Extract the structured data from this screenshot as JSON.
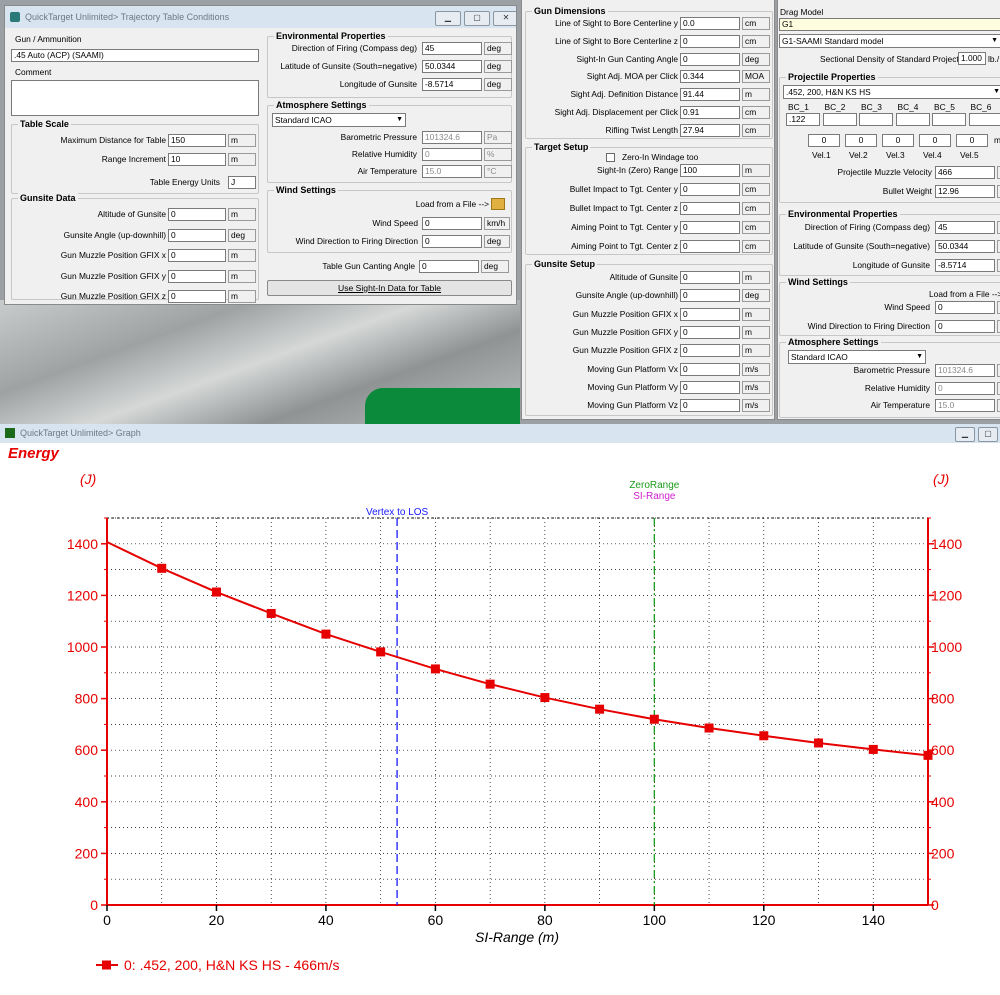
{
  "traj_window": {
    "title": "QuickTarget Unlimited> Trajectory Table Conditions",
    "gun_ammo_label": "Gun / Ammunition",
    "gun_ammo_value": ".45 Auto (ACP) (SAAMI)",
    "comment_label": "Comment",
    "table_scale": {
      "title": "Table Scale",
      "max_dist_label": "Maximum Distance for Table",
      "max_dist_value": "150",
      "max_dist_unit": "m",
      "range_inc_label": "Range Increment",
      "range_inc_value": "10",
      "range_inc_unit": "m",
      "energy_units_label": "Table Energy Units",
      "energy_units_value": "J"
    },
    "gunsite": {
      "title": "Gunsite Data",
      "rows": [
        {
          "label": "Altitude of Gunsite",
          "value": "0",
          "unit": "m"
        },
        {
          "label": "Gunsite Angle (up-downhill)",
          "value": "0",
          "unit": "deg"
        },
        {
          "label": "Gun Muzzle Position GFIX x",
          "value": "0",
          "unit": "m"
        },
        {
          "label": "Gun Muzzle Position GFIX y",
          "value": "0",
          "unit": "m"
        },
        {
          "label": "Gun Muzzle Position GFIX z",
          "value": "0",
          "unit": "m"
        }
      ]
    },
    "env": {
      "title": "Environmental Properties",
      "rows": [
        {
          "label": "Direction of Firing (Compass deg)",
          "value": "45",
          "unit": "deg"
        },
        {
          "label": "Latitude of Gunsite (South=negative)",
          "value": "50.0344",
          "unit": "deg"
        },
        {
          "label": "Longitude of Gunsite",
          "value": "-8.5714",
          "unit": "deg"
        }
      ]
    },
    "atmo": {
      "title": "Atmosphere Settings",
      "model": "Standard ICAO",
      "rows": [
        {
          "label": "Barometric Pressure",
          "value": "101324.6",
          "unit": "Pa"
        },
        {
          "label": "Relative Humidity",
          "value": "0",
          "unit": "%"
        },
        {
          "label": "Air Temperature",
          "value": "15.0",
          "unit": "°C"
        }
      ]
    },
    "wind": {
      "title": "Wind Settings",
      "load_label": "Load from a File -->",
      "speed_label": "Wind Speed",
      "speed_value": "0",
      "speed_unit": "km/h",
      "dir_label": "Wind Direction to Firing Direction",
      "dir_value": "0",
      "dir_unit": "deg"
    },
    "cant_label": "Table Gun Canting Angle",
    "cant_value": "0",
    "cant_unit": "deg",
    "use_sightin_button": "Use Sight-In Data for Table"
  },
  "mid_window": {
    "gun_dim": {
      "title": "Gun Dimensions",
      "rows": [
        {
          "label": "Line of Sight to Bore Centerline y",
          "value": "0.0",
          "unit": "cm"
        },
        {
          "label": "Line of Sight to Bore Centerline z",
          "value": "0",
          "unit": "cm"
        },
        {
          "label": "Sight-In Gun Canting Angle",
          "value": "0",
          "unit": "deg"
        },
        {
          "label": "Sight Adj. MOA per Click",
          "value": "0.344",
          "unit": "MOA"
        },
        {
          "label": "Sight Adj. Definition Distance",
          "value": "91.44",
          "unit": "m"
        },
        {
          "label": "Sight Adj. Displacement per Click",
          "value": "0.91",
          "unit": "cm"
        },
        {
          "label": "Rifling Twist Length",
          "value": "27.94",
          "unit": "cm"
        }
      ]
    },
    "target": {
      "title": "Target Setup",
      "zero_windage_label": "Zero-In Windage too",
      "rows": [
        {
          "label": "Sight-In (Zero) Range",
          "value": "100",
          "unit": "m"
        },
        {
          "label": "Bullet Impact to Tgt. Center y",
          "value": "0",
          "unit": "cm"
        },
        {
          "label": "Bullet Impact to Tgt. Center z",
          "value": "0",
          "unit": "cm"
        },
        {
          "label": "Aiming Point to Tgt. Center y",
          "value": "0",
          "unit": "cm"
        },
        {
          "label": "Aiming Point to Tgt. Center z",
          "value": "0",
          "unit": "cm"
        }
      ]
    },
    "gunsite": {
      "title": "Gunsite Setup",
      "rows": [
        {
          "label": "Altitude of Gunsite",
          "value": "0",
          "unit": "m"
        },
        {
          "label": "Gunsite Angle (up-downhill)",
          "value": "0",
          "unit": "deg"
        },
        {
          "label": "Gun Muzzle Position GFIX x",
          "value": "0",
          "unit": "m"
        },
        {
          "label": "Gun Muzzle Position GFIX y",
          "value": "0",
          "unit": "m"
        },
        {
          "label": "Gun Muzzle Position GFIX z",
          "value": "0",
          "unit": "m"
        },
        {
          "label": "Moving Gun Platform Vx",
          "value": "0",
          "unit": "m/s"
        },
        {
          "label": "Moving Gun Platform Vy",
          "value": "0",
          "unit": "m/s"
        },
        {
          "label": "Moving Gun Platform Vz",
          "value": "0",
          "unit": "m/s"
        }
      ]
    }
  },
  "right_window": {
    "drag_model_label": "Drag Model",
    "drag_model_value": "G1",
    "std_model_value": "G1-SAAMI Standard model",
    "sd_label": "Sectional Density of Standard Projectile",
    "sd_value": "1.000",
    "sd_unit": "lb./",
    "proj": {
      "title": "Projectile Properties",
      "name": ".452, 200, H&N KS HS",
      "bc_labels": [
        "BC_1",
        "BC_2",
        "BC_3",
        "BC_4",
        "BC_5",
        "BC_6"
      ],
      "bc_values": [
        ".122",
        "",
        "",
        "",
        "",
        ""
      ],
      "vel_values": [
        "0",
        "0",
        "0",
        "0",
        "0"
      ],
      "vel_labels": [
        "Vel.1",
        "Vel.2",
        "Vel.3",
        "Vel.4",
        "Vel.5"
      ],
      "vel_unit": "m",
      "muzzle_label": "Projectile Muzzle Velocity",
      "muzzle_value": "466",
      "muzzle_unit": "m",
      "weight_label": "Bullet Weight",
      "weight_value": "12.96",
      "weight_unit": "g"
    },
    "env": {
      "title": "Environmental Properties",
      "rows": [
        {
          "label": "Direction of Firing (Compass deg)",
          "value": "45",
          "unit": "d"
        },
        {
          "label": "Latitude of Gunsite (South=negative)",
          "value": "50.0344",
          "unit": "d"
        },
        {
          "label": "Longitude of Gunsite",
          "value": "-8.5714",
          "unit": "d"
        }
      ]
    },
    "wind": {
      "title": "Wind Settings",
      "load_label": "Load from a File -->",
      "speed_label": "Wind Speed",
      "speed_value": "0",
      "speed_unit": "k",
      "dir_label": "Wind Direction to Firing Direction",
      "dir_value": "0",
      "dir_unit": "d"
    },
    "atmo": {
      "title": "Atmosphere Settings",
      "model": "Standard ICAO",
      "rows": [
        {
          "label": "Barometric Pressure",
          "value": "101324.6",
          "unit": "P"
        },
        {
          "label": "Relative Humidity",
          "value": "0",
          "unit": "%"
        },
        {
          "label": "Air Temperature",
          "value": "15.0",
          "unit": "°"
        }
      ]
    }
  },
  "graph_window": {
    "title": "QuickTarget Unlimited> Graph"
  },
  "chart_data": {
    "type": "line",
    "title": "Energy",
    "ylabel_left": "(J)",
    "ylabel_right": "(J)",
    "xlabel": "SI-Range (m)",
    "xlim": [
      0,
      150
    ],
    "ylim": [
      0,
      1500
    ],
    "xticks": [
      0,
      20,
      40,
      60,
      80,
      100,
      120,
      140
    ],
    "yticks": [
      0,
      200,
      400,
      600,
      800,
      1000,
      1200,
      1400
    ],
    "grid": true,
    "series": [
      {
        "name": "0: .452, 200, H&N KS HS - 466m/s",
        "color": "#e60000",
        "x": [
          0,
          10,
          20,
          30,
          40,
          50,
          60,
          70,
          80,
          90,
          100,
          110,
          120,
          130,
          140,
          150
        ],
        "y": [
          1407,
          1305,
          1213,
          1130,
          1050,
          981,
          915,
          856,
          804,
          759,
          720,
          686,
          656,
          628,
          603,
          580
        ],
        "marker_x": [
          10,
          20,
          30,
          40,
          50,
          60,
          70,
          80,
          90,
          100,
          110,
          120,
          130,
          140,
          150
        ]
      }
    ],
    "annotations": [
      {
        "label": "Vertex to LOS",
        "x": 53,
        "color": "#1a1aff"
      },
      {
        "label": "ZeroRange",
        "x": 100,
        "color": "#1a9a1a"
      },
      {
        "label": "SI-Range",
        "x": 100,
        "color": "#d020d0"
      }
    ]
  }
}
